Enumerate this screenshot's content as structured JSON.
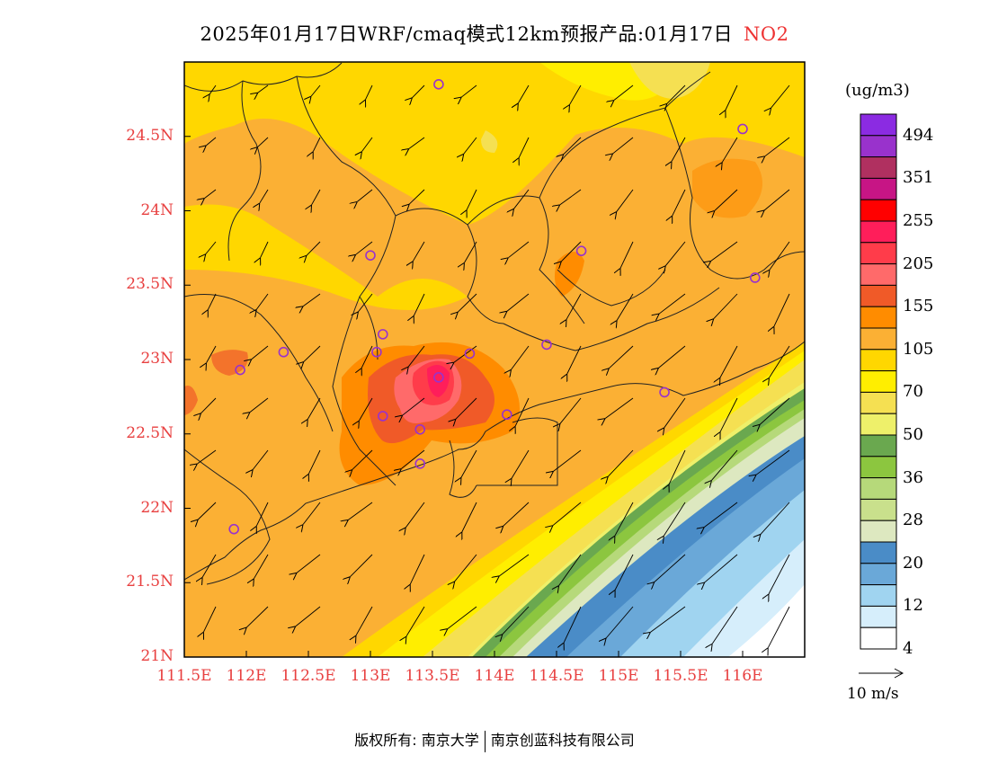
{
  "title": {
    "main": "2025年01月17日WRF/cmaq模式12km预报产品:01月17日",
    "pollutant": "NO2",
    "pollutant_color": "#ee3333"
  },
  "axes": {
    "lat_labels": [
      "24.5N",
      "24N",
      "23.5N",
      "23N",
      "22.5N",
      "22N",
      "21.5N",
      "21N"
    ],
    "lon_labels": [
      "111.5E",
      "112E",
      "112.5E",
      "113E",
      "113.5E",
      "114E",
      "114.5E",
      "115E",
      "115.5E",
      "116E"
    ],
    "label_color": "#e84040",
    "lat_range": [
      21.0,
      25.0
    ],
    "lon_range": [
      111.5,
      116.5
    ]
  },
  "colorbar": {
    "units": "(ug/m3)",
    "labels": [
      "494",
      "351",
      "255",
      "205",
      "155",
      "105",
      "70",
      "50",
      "36",
      "28",
      "20",
      "12",
      "4"
    ],
    "colors": [
      "#8b2be2",
      "#9932cc",
      "#b03060",
      "#c71585",
      "#ff0000",
      "#ff1e5a",
      "#ff3c4a",
      "#ff6a6a",
      "#f05a28",
      "#ff8c00",
      "#fbb034",
      "#ffd700",
      "#ffee00",
      "#f5e052",
      "#eef06a",
      "#6aa84f",
      "#8cc63f",
      "#b6d97a",
      "#c9e08c",
      "#dde8c0",
      "#4a8cc7",
      "#6aa8d8",
      "#a0d4f0",
      "#d6eefb",
      "#ffffff"
    ]
  },
  "wind_scale": {
    "label": "10 m/s"
  },
  "stations": [
    {
      "lon": 113.55,
      "lat": 24.85
    },
    {
      "lon": 116.0,
      "lat": 24.55
    },
    {
      "lon": 114.7,
      "lat": 23.73
    },
    {
      "lon": 113.0,
      "lat": 23.7
    },
    {
      "lon": 116.1,
      "lat": 23.55
    },
    {
      "lon": 113.1,
      "lat": 23.17
    },
    {
      "lon": 112.3,
      "lat": 23.05
    },
    {
      "lon": 113.05,
      "lat": 23.05
    },
    {
      "lon": 113.8,
      "lat": 23.04
    },
    {
      "lon": 114.42,
      "lat": 23.1
    },
    {
      "lon": 111.95,
      "lat": 22.93
    },
    {
      "lon": 113.55,
      "lat": 22.88
    },
    {
      "lon": 113.1,
      "lat": 22.62
    },
    {
      "lon": 114.1,
      "lat": 22.63
    },
    {
      "lon": 115.37,
      "lat": 22.78
    },
    {
      "lon": 113.4,
      "lat": 22.53
    },
    {
      "lon": 113.4,
      "lat": 22.3
    },
    {
      "lon": 111.9,
      "lat": 21.86
    }
  ],
  "copyright": {
    "left": "版权所有: 南京大学",
    "right": "南京创蓝科技有限公司"
  }
}
